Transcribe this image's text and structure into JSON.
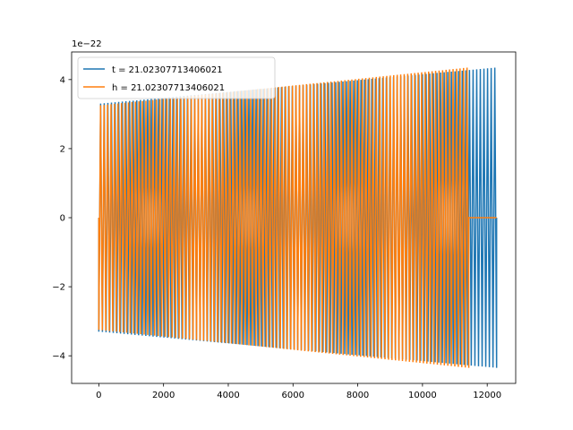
{
  "chart_data": {
    "type": "line",
    "title": "",
    "xlabel": "",
    "ylabel": "",
    "y_offset_label": "1e−22",
    "xlim": [
      -840,
      12880
    ],
    "ylim": [
      -4.8,
      4.8
    ],
    "x_ticks": [
      {
        "value": 0,
        "label": "0"
      },
      {
        "value": 2000,
        "label": "2000"
      },
      {
        "value": 4000,
        "label": "4000"
      },
      {
        "value": 6000,
        "label": "6000"
      },
      {
        "value": 8000,
        "label": "8000"
      },
      {
        "value": 10000,
        "label": "10000"
      },
      {
        "value": 12000,
        "label": "12000"
      }
    ],
    "y_ticks": [
      {
        "value": 4,
        "label": "4"
      },
      {
        "value": 2,
        "label": "2"
      },
      {
        "value": 0,
        "label": "0"
      },
      {
        "value": -2,
        "label": "−2"
      },
      {
        "value": -4,
        "label": "−4"
      }
    ],
    "grid": false,
    "legend_position": "top-left",
    "series": [
      {
        "name": "t = 21.02307713406021",
        "color": "#1f77b4",
        "x_start": 0,
        "x_end": 12290,
        "amplitude_start": 3.3,
        "amplitude_end": 4.35,
        "cycles": 110
      },
      {
        "name": "h = 21.02307713406021",
        "color": "#ff7f0e",
        "x_start": 0,
        "x_end": 11430,
        "amplitude_start": 3.25,
        "amplitude_end": 4.35,
        "cycles": 106,
        "tail_end": 12290
      }
    ]
  }
}
